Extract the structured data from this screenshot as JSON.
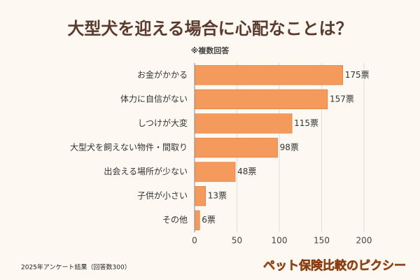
{
  "chart_data": {
    "type": "bar",
    "orientation": "horizontal",
    "title": "大型犬を迎える場合に心配なことは？",
    "subtitle": "※複数回答",
    "categories": [
      "お金がかかる",
      "体力に自信がない",
      "しつけが大変",
      "大型犬を飼えない物件・間取り",
      "出会える場所が少ない",
      "子供が小さい",
      "その他"
    ],
    "values": [
      175,
      157,
      115,
      98,
      48,
      13,
      6
    ],
    "value_labels": [
      "175票",
      "157票",
      "115票",
      "98票",
      "48票",
      "13票",
      "6票"
    ],
    "color": "#f39a5c",
    "xlim": [
      0,
      200
    ],
    "xticks": [
      0,
      50,
      100,
      150,
      200
    ],
    "grid": true,
    "footnote": "2025年アンケート結果（回答数300）",
    "brand": "ペット保険比較のピクシー"
  }
}
